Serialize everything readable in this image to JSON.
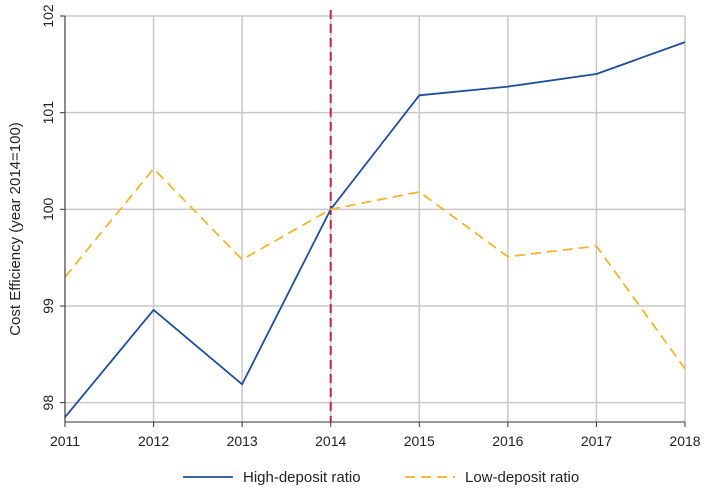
{
  "chart_data": {
    "type": "line",
    "x": [
      2011,
      2012,
      2013,
      2014,
      2015,
      2016,
      2017,
      2018
    ],
    "series": [
      {
        "name": "High-deposit ratio",
        "values": [
          97.85,
          98.96,
          98.19,
          100.0,
          101.18,
          101.27,
          101.4,
          101.73
        ],
        "color": "#1f4e9c",
        "style": "solid"
      },
      {
        "name": "Low-deposit ratio",
        "values": [
          99.3,
          100.42,
          99.48,
          100.0,
          100.18,
          99.51,
          99.62,
          98.35
        ],
        "color": "#f2b530",
        "style": "dashed"
      }
    ],
    "xlim": [
      2011,
      2018
    ],
    "ylim": [
      97.8,
      102
    ],
    "x_ticks": [
      "2011",
      "2012",
      "2013",
      "2014",
      "2015",
      "2016",
      "2017",
      "2018"
    ],
    "y_ticks": [
      "98",
      "99",
      "100",
      "101",
      "102"
    ],
    "ylabel": "Cost Efficiency (year 2014=100)",
    "xlabel": "",
    "grid": true,
    "legend_position": "bottom",
    "reference_line": {
      "x": 2014,
      "color": "#c0234a",
      "style": "dashed"
    }
  }
}
